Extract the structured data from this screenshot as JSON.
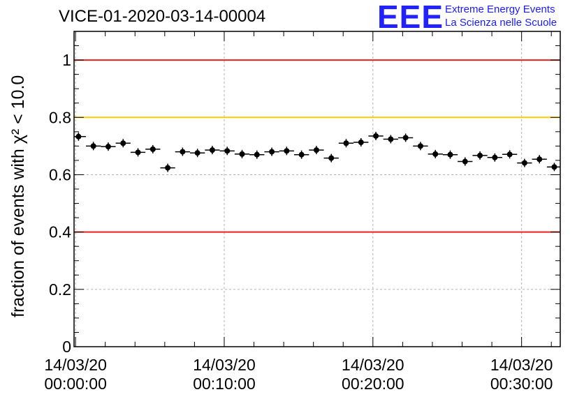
{
  "header": {
    "title": "VICE-01-2020-03-14-00004",
    "logo": "EEE",
    "logo_line1": "Extreme Energy Events",
    "logo_line2": "La Scienza nelle Scuole"
  },
  "chart_data": {
    "type": "scatter",
    "title": "VICE-01-2020-03-14-00004",
    "ylabel": "fraction of events with χ² < 10.0",
    "xlabel": "",
    "ylim": [
      0,
      1.1
    ],
    "xlim": [
      -0.1,
      32.6
    ],
    "x_unit": "minutes since 14/03/20 00:00:00",
    "grid": true,
    "y_ticks": [
      "0",
      "0.2",
      "0.4",
      "0.6",
      "0.8",
      "1"
    ],
    "x_ticks": [
      {
        "x": 0,
        "date": "14/03/20",
        "time": "00:00:00"
      },
      {
        "x": 10,
        "date": "14/03/20",
        "time": "00:10:00"
      },
      {
        "x": 20,
        "date": "14/03/20",
        "time": "00:20:00"
      },
      {
        "x": 30,
        "date": "14/03/20",
        "time": "00:30:00"
      }
    ],
    "reference_lines": [
      {
        "y": 1.0,
        "color": "#e8201c"
      },
      {
        "y": 0.8,
        "color": "#ffcc00"
      },
      {
        "y": 0.4,
        "color": "#e8201c"
      }
    ],
    "bin_width": 1.0,
    "series": [
      {
        "x": [
          0.2,
          1.2,
          2.2,
          3.2,
          4.2,
          5.2,
          6.2,
          7.2,
          8.2,
          9.2,
          10.2,
          11.2,
          12.2,
          13.2,
          14.2,
          15.2,
          16.2,
          17.2,
          18.2,
          19.2,
          20.2,
          21.2,
          22.2,
          23.2,
          24.2,
          25.2,
          26.2,
          27.2,
          28.2,
          29.2,
          30.2,
          31.2,
          32.2
        ],
        "y": [
          0.733,
          0.7,
          0.698,
          0.71,
          0.678,
          0.689,
          0.624,
          0.68,
          0.676,
          0.686,
          0.683,
          0.672,
          0.67,
          0.68,
          0.683,
          0.67,
          0.686,
          0.658,
          0.71,
          0.713,
          0.735,
          0.724,
          0.729,
          0.7,
          0.672,
          0.67,
          0.646,
          0.667,
          0.66,
          0.671,
          0.641,
          0.654,
          0.627
        ],
        "color": "#000000"
      }
    ]
  }
}
